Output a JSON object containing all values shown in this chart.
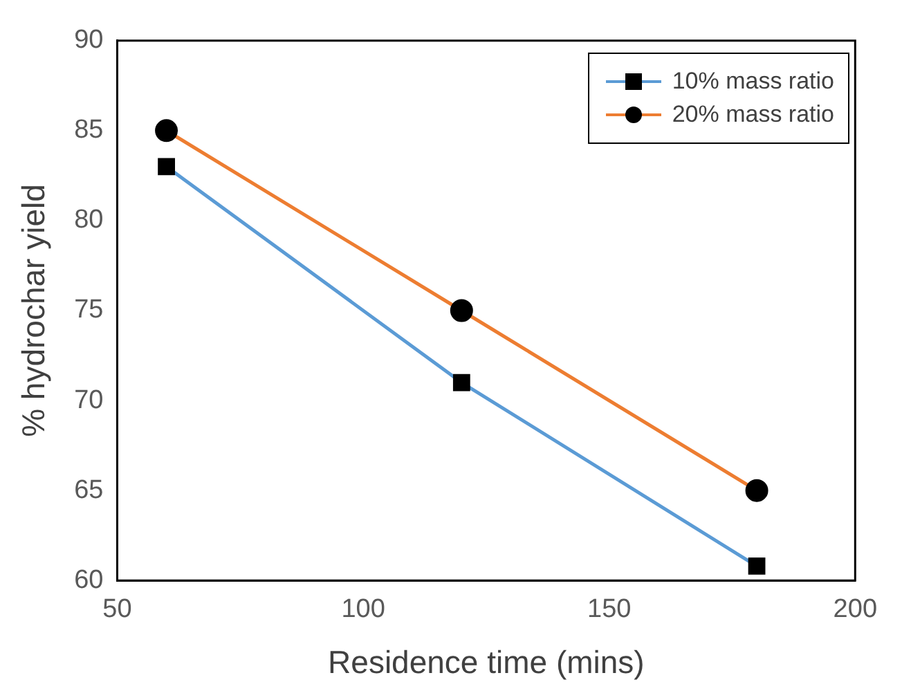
{
  "chart_data": {
    "type": "line",
    "xlabel": "Residence time (mins)",
    "ylabel": "% hydrochar yield",
    "x": [
      60,
      120,
      180
    ],
    "series": [
      {
        "name": "10% mass ratio",
        "color": "#5b9bd5",
        "values": [
          83,
          71,
          60.8
        ],
        "marker": "square"
      },
      {
        "name": "20% mass ratio",
        "color": "#ed7d31",
        "values": [
          85,
          75,
          65
        ],
        "marker": "circle"
      }
    ],
    "xlim": [
      50,
      200
    ],
    "xticks": [
      50,
      100,
      150,
      200
    ],
    "ylim": [
      60,
      90
    ],
    "yticks": [
      60,
      65,
      70,
      75,
      80,
      85,
      90
    ],
    "grid": false,
    "legend": "top right",
    "line_style": "solid"
  }
}
